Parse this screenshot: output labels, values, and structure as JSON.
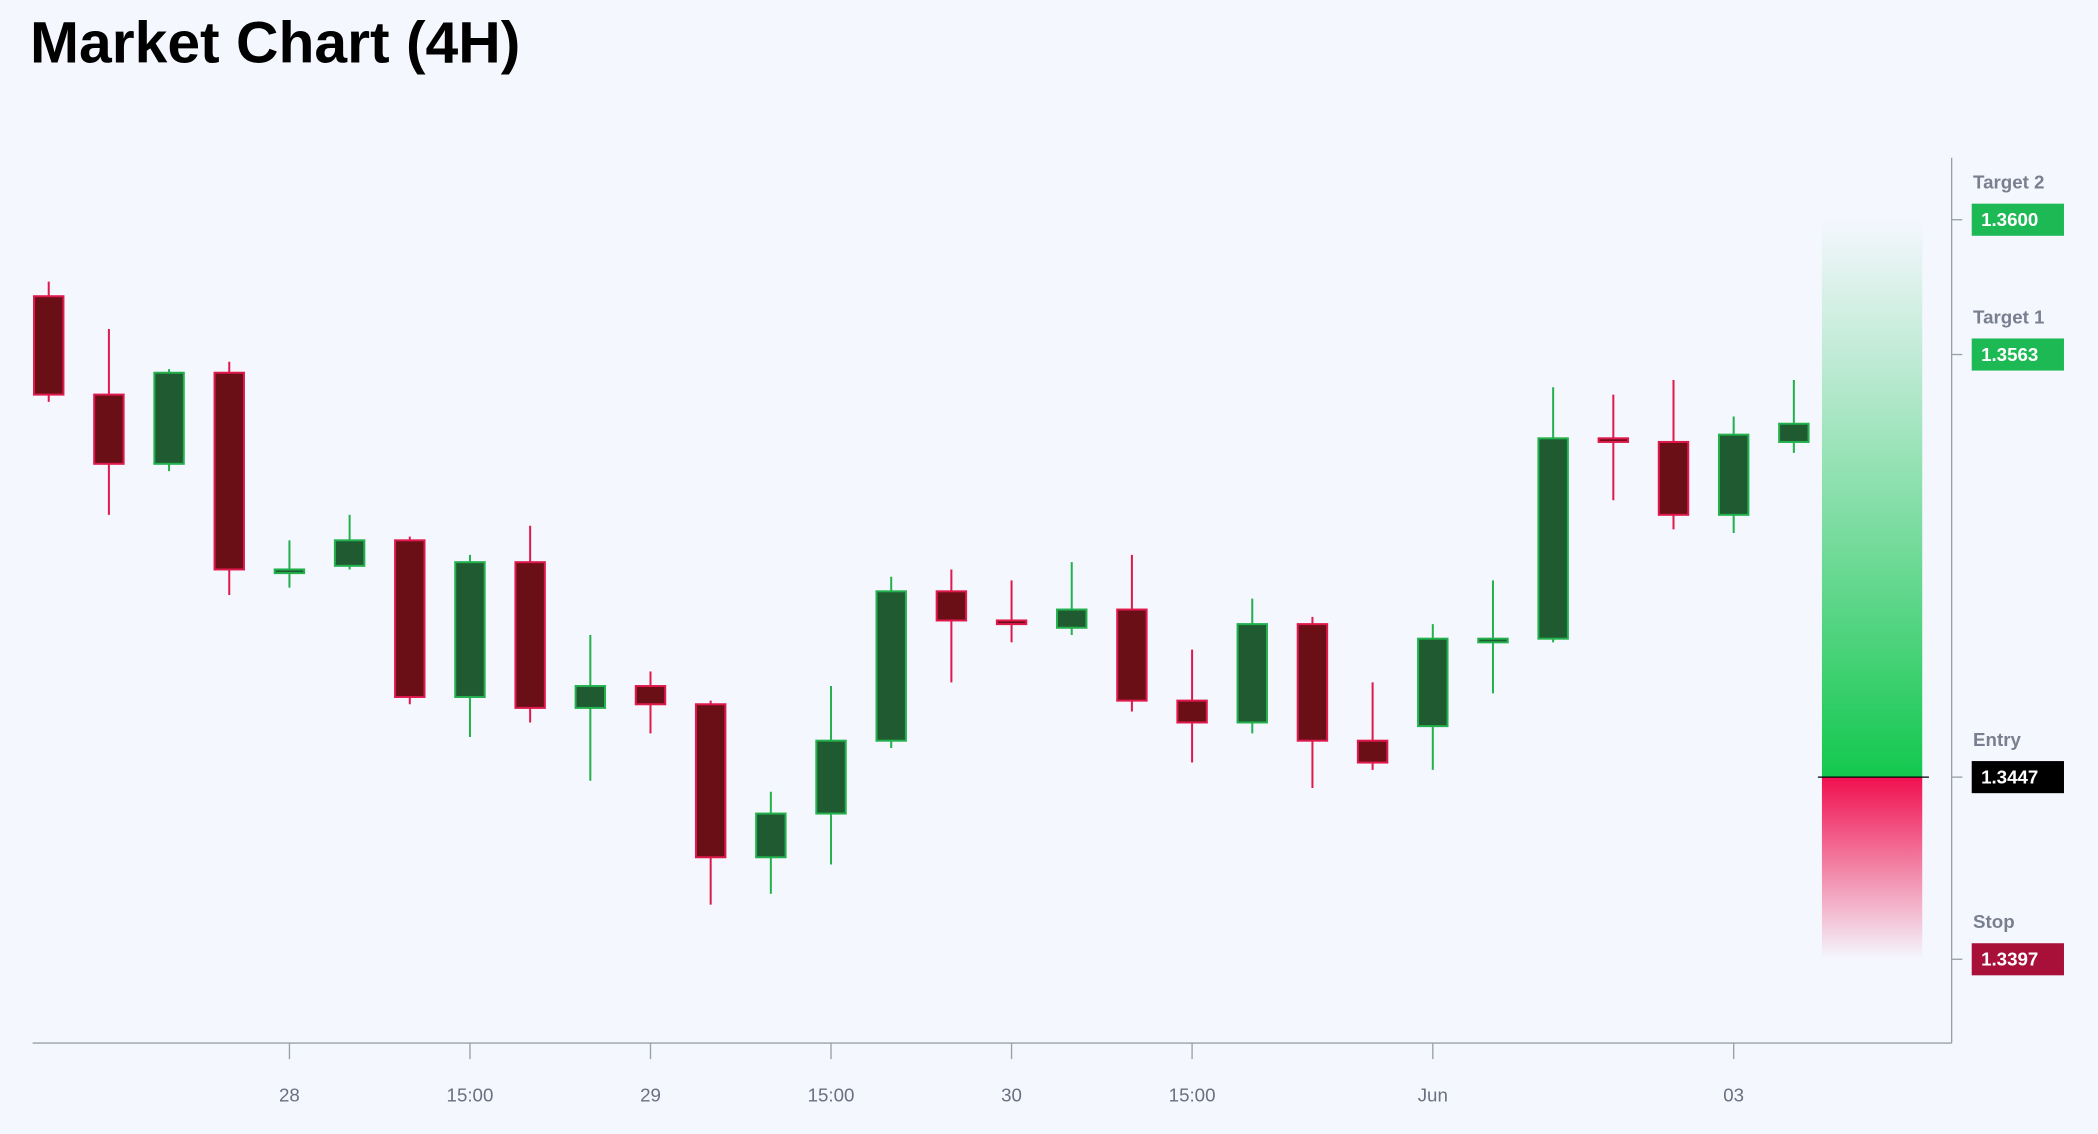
{
  "chart_data": {
    "type": "candlestick",
    "title": "Market Chart (4H)",
    "categories": [
      null,
      null,
      null,
      null,
      "28",
      null,
      null,
      "15:00",
      null,
      null,
      "29",
      null,
      null,
      "15:00",
      null,
      null,
      "30",
      null,
      null,
      "15:00",
      null,
      null,
      null,
      "Jun",
      null,
      null,
      null,
      null,
      "03",
      null
    ],
    "open": [
      1.3579,
      1.3552,
      1.3533,
      1.3558,
      1.3503,
      1.3505,
      1.3512,
      1.3469,
      1.3506,
      1.3466,
      1.3472,
      1.3467,
      1.3425,
      1.3437,
      1.3457,
      1.3498,
      1.349,
      1.3488,
      1.3493,
      1.3468,
      1.3462,
      1.3489,
      1.3457,
      1.3461,
      1.3484,
      1.3485,
      1.354,
      1.3539,
      1.3519,
      1.3539
    ],
    "high": [
      1.3583,
      1.357,
      1.3559,
      1.3561,
      1.3512,
      1.3519,
      1.3513,
      1.3508,
      1.3516,
      1.3486,
      1.3476,
      1.3468,
      1.3443,
      1.3472,
      1.3502,
      1.3504,
      1.3501,
      1.3506,
      1.3508,
      1.3482,
      1.3496,
      1.3491,
      1.3473,
      1.3489,
      1.3501,
      1.3554,
      1.3552,
      1.3556,
      1.3546,
      1.3556
    ],
    "low": [
      1.355,
      1.3519,
      1.3531,
      1.3497,
      1.3499,
      1.3504,
      1.3467,
      1.3458,
      1.3462,
      1.3446,
      1.3459,
      1.3412,
      1.3415,
      1.3423,
      1.3455,
      1.3473,
      1.3484,
      1.3486,
      1.3465,
      1.3451,
      1.3459,
      1.3444,
      1.3449,
      1.3449,
      1.347,
      1.3484,
      1.3523,
      1.3515,
      1.3514,
      1.3536
    ],
    "close": [
      1.3552,
      1.3533,
      1.3558,
      1.3504,
      1.3504,
      1.3512,
      1.3469,
      1.3506,
      1.3466,
      1.3472,
      1.3467,
      1.3425,
      1.3437,
      1.3457,
      1.3498,
      1.349,
      1.3489,
      1.3493,
      1.3468,
      1.3462,
      1.3489,
      1.3457,
      1.3451,
      1.3485,
      1.3485,
      1.354,
      1.3539,
      1.3519,
      1.3541,
      1.3544
    ],
    "up_color": "#22b14c",
    "up_fill": "#1f5a31",
    "down_color": "#e0194d",
    "down_fill": "#6b0f17",
    "ylim": [
      1.3374,
      1.3617
    ],
    "levels": [
      {
        "name": "Target 2",
        "value": 1.36,
        "label": "1.3600",
        "color": "#1db954"
      },
      {
        "name": "Target 1",
        "value": 1.3563,
        "label": "1.3563",
        "color": "#1db954"
      },
      {
        "name": "Entry",
        "value": 1.3447,
        "label": "1.3447",
        "color": "#000000"
      },
      {
        "name": "Stop",
        "value": 1.3397,
        "label": "1.3397",
        "color": "#a8103a"
      }
    ]
  }
}
